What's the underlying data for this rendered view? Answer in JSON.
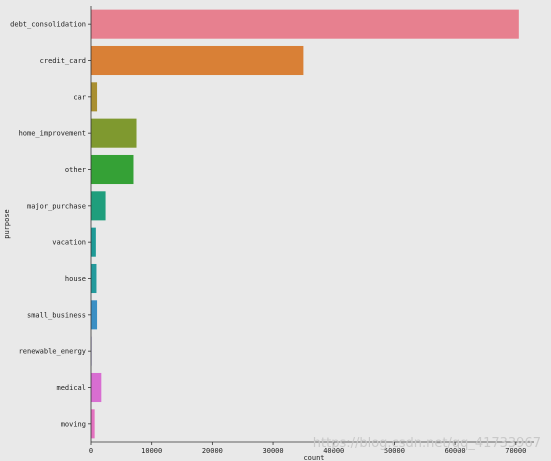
{
  "chart_data": {
    "type": "bar",
    "orientation": "horizontal",
    "categories": [
      "debt_consolidation",
      "credit_card",
      "car",
      "home_improvement",
      "other",
      "major_purchase",
      "vacation",
      "house",
      "small_business",
      "renewable_energy",
      "medical",
      "moving"
    ],
    "values": [
      70500,
      35000,
      1000,
      7500,
      7000,
      2400,
      800,
      900,
      1000,
      60,
      1700,
      600
    ],
    "colors": [
      "#e7808f",
      "#d98036",
      "#a98f30",
      "#7f992f",
      "#35a136",
      "#1f9e7c",
      "#1e9a96",
      "#239a9c",
      "#3b8fc4",
      "#9d8bd0",
      "#d86ed1",
      "#e472c0"
    ],
    "xlabel": "count",
    "ylabel": "purpose",
    "xlim": [
      0,
      73000
    ],
    "xticks": [
      "0",
      "10000",
      "20000",
      "30000",
      "40000",
      "50000",
      "60000",
      "70000"
    ],
    "grid": false,
    "legend": "none"
  },
  "watermark": "https://blog.csdn.net/qq_41733967"
}
